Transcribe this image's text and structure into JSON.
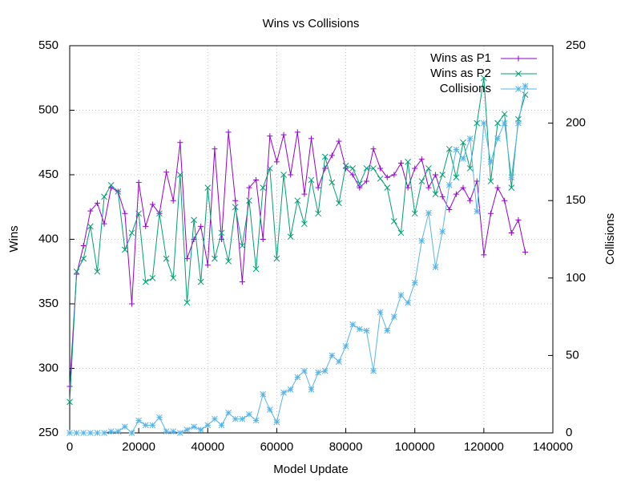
{
  "chart_data": {
    "type": "line",
    "title": "Wins vs Collisions",
    "xlabel": "Model Update",
    "ylabel": "Wins",
    "y2label": "Collisions",
    "x": [
      0,
      2000,
      4000,
      6000,
      8000,
      10000,
      12000,
      14000,
      16000,
      18000,
      20000,
      22000,
      24000,
      26000,
      28000,
      30000,
      32000,
      34000,
      36000,
      38000,
      40000,
      42000,
      44000,
      46000,
      48000,
      50000,
      52000,
      54000,
      56000,
      58000,
      60000,
      62000,
      64000,
      66000,
      68000,
      70000,
      72000,
      74000,
      76000,
      78000,
      80000,
      82000,
      84000,
      86000,
      88000,
      90000,
      92000,
      94000,
      96000,
      98000,
      100000,
      102000,
      104000,
      106000,
      108000,
      110000,
      112000,
      114000,
      116000,
      118000,
      120000,
      122000,
      124000,
      126000,
      128000,
      130000,
      132000
    ],
    "series": [
      {
        "name": "Wins as P1",
        "color": "#9400d3",
        "marker": "plus",
        "values": [
          286,
          373,
          395,
          422,
          428,
          412,
          440,
          437,
          420,
          350,
          444,
          410,
          427,
          420,
          452,
          430,
          475,
          385,
          400,
          410,
          380,
          470,
          400,
          483,
          430,
          367,
          440,
          446,
          400,
          480,
          460,
          481,
          450,
          483,
          435,
          478,
          440,
          455,
          465,
          476,
          455,
          450,
          440,
          445,
          470,
          455,
          448,
          450,
          459,
          440,
          455,
          462,
          440,
          450,
          433,
          423,
          435,
          440,
          430,
          445,
          388,
          420,
          440,
          430,
          405,
          415,
          390
        ]
      },
      {
        "name": "Wins as P2",
        "color": "#009e73",
        "marker": "cross",
        "values": [
          274,
          375,
          385,
          410,
          375,
          433,
          442,
          437,
          392,
          405,
          420,
          367,
          370,
          420,
          385,
          370,
          450,
          351,
          415,
          367,
          440,
          385,
          405,
          383,
          425,
          395,
          430,
          377,
          440,
          455,
          385,
          450,
          402,
          430,
          412,
          446,
          420,
          464,
          444,
          428,
          457,
          455,
          443,
          455,
          455,
          447,
          440,
          414,
          405,
          460,
          420,
          445,
          455,
          435,
          450,
          470,
          448,
          475,
          455,
          490,
          525,
          445,
          490,
          497,
          440,
          493,
          512
        ]
      },
      {
        "name": "Collisions",
        "color": "#56b4e9",
        "marker": "star",
        "axis": "y2",
        "values": [
          0,
          0,
          0,
          0,
          0,
          0,
          1,
          1,
          4,
          0,
          8,
          5,
          5,
          10,
          1,
          1,
          0,
          2,
          4,
          2,
          5,
          9,
          5,
          13,
          9,
          9,
          12,
          8,
          25,
          15,
          7,
          26,
          28,
          36,
          40,
          28,
          39,
          40,
          50,
          46,
          56,
          70,
          67,
          66,
          40,
          78,
          66,
          75,
          89,
          84,
          97,
          124,
          142,
          107,
          130,
          160,
          183,
          177,
          190,
          143,
          200,
          175,
          190,
          200,
          165,
          200,
          224
        ]
      }
    ],
    "xlim": [
      0,
      140000
    ],
    "xticks": [
      0,
      20000,
      40000,
      60000,
      80000,
      100000,
      120000,
      140000
    ],
    "ylim": [
      250,
      550
    ],
    "yticks": [
      250,
      300,
      350,
      400,
      450,
      500,
      550
    ],
    "y2lim": [
      0,
      250
    ],
    "y2ticks": [
      0,
      50,
      100,
      150,
      200,
      250
    ],
    "grid": true,
    "legend": "top-right"
  }
}
